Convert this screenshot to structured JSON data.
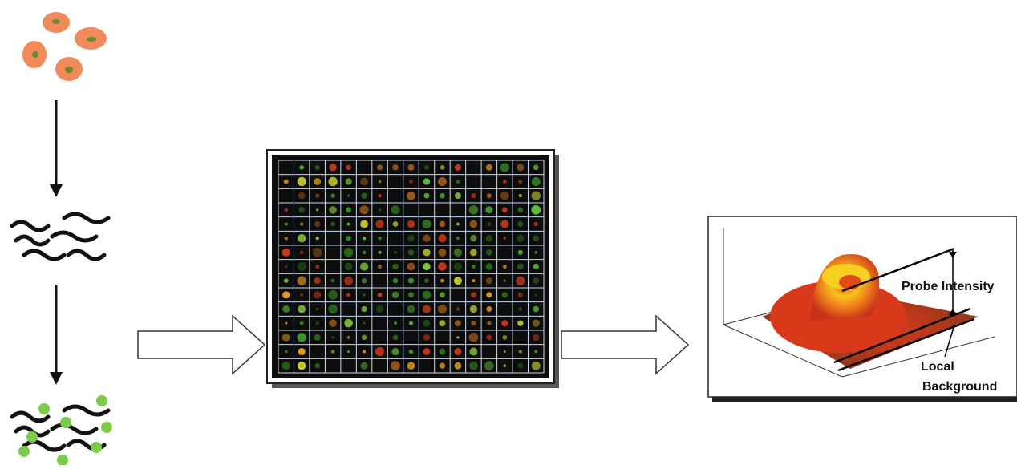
{
  "plot_labels": {
    "probe_intensity": "Probe Intensity",
    "local_background": [
      "Local",
      "Background"
    ]
  }
}
